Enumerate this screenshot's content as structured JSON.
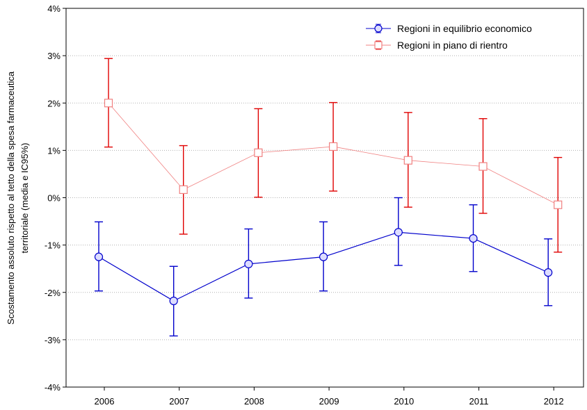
{
  "chart_data": {
    "type": "line",
    "categories": [
      "2006",
      "2007",
      "2008",
      "2009",
      "2010",
      "2011",
      "2012"
    ],
    "ylabel_line1": "Scostamento assoluto rispetto al tetto della spesa farmaceutica",
    "ylabel_line2": "territoriale (media e IC95%)",
    "ylim": [
      -4,
      4
    ],
    "yticks": [
      -4,
      -3,
      -2,
      -1,
      0,
      1,
      2,
      3,
      4
    ],
    "ytick_labels": [
      "-4%",
      "-3%",
      "-2%",
      "-1%",
      "0%",
      "1%",
      "2%",
      "3%",
      "4%"
    ],
    "grid": true,
    "legend_position": "top-right",
    "series": [
      {
        "name": "Regioni in equilibrio economico",
        "color": "#0000cc",
        "marker": "circle",
        "values": [
          -1.25,
          -2.18,
          -1.4,
          -1.25,
          -0.73,
          -0.86,
          -1.58
        ],
        "lower": [
          -1.97,
          -2.92,
          -2.12,
          -1.97,
          -1.43,
          -1.56,
          -2.28
        ],
        "upper": [
          -0.51,
          -1.45,
          -0.66,
          -0.51,
          0.0,
          -0.15,
          -0.87
        ]
      },
      {
        "name": "Regioni in piano di rientro",
        "color": "#e00000",
        "marker": "square",
        "values": [
          2.0,
          0.17,
          0.95,
          1.08,
          0.79,
          0.66,
          -0.15
        ],
        "lower": [
          1.07,
          -0.77,
          0.01,
          0.14,
          -0.2,
          -0.33,
          -1.15
        ],
        "upper": [
          2.94,
          1.1,
          1.88,
          2.01,
          1.8,
          1.67,
          0.85
        ]
      }
    ]
  }
}
